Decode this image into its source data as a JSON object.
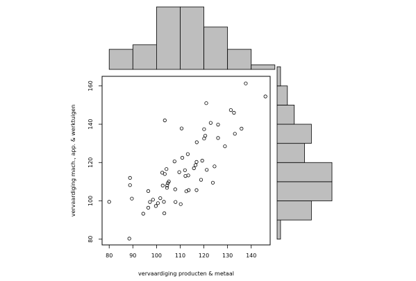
{
  "chart_data": {
    "type": "scatter",
    "title": "",
    "xlabel": "vervaardiging producten & metaal",
    "ylabel": "vervaardiging mach., app. & werktuigen",
    "xlim": [
      77,
      148
    ],
    "ylim": [
      77,
      165
    ],
    "xticks": [
      80,
      90,
      100,
      110,
      120,
      130,
      140
    ],
    "yticks": [
      80,
      100,
      120,
      140,
      160
    ],
    "grid": false,
    "points": [
      {
        "x": 80.0,
        "y": 99.5
      },
      {
        "x": 88.5,
        "y": 80.3
      },
      {
        "x": 88.8,
        "y": 112.0
      },
      {
        "x": 88.8,
        "y": 108.2
      },
      {
        "x": 89.6,
        "y": 101.2
      },
      {
        "x": 94.4,
        "y": 93.3
      },
      {
        "x": 96.5,
        "y": 105.1
      },
      {
        "x": 96.5,
        "y": 96.4
      },
      {
        "x": 97.2,
        "y": 99.4
      },
      {
        "x": 98.5,
        "y": 100.6
      },
      {
        "x": 99.7,
        "y": 97.3
      },
      {
        "x": 100.6,
        "y": 98.8
      },
      {
        "x": 101.6,
        "y": 101.4
      },
      {
        "x": 102.4,
        "y": 114.7
      },
      {
        "x": 102.6,
        "y": 108.0
      },
      {
        "x": 103.1,
        "y": 99.5
      },
      {
        "x": 103.3,
        "y": 93.5
      },
      {
        "x": 103.5,
        "y": 142.0
      },
      {
        "x": 103.5,
        "y": 114.0
      },
      {
        "x": 104.2,
        "y": 116.6
      },
      {
        "x": 104.5,
        "y": 108.0
      },
      {
        "x": 104.4,
        "y": 106.8
      },
      {
        "x": 104.8,
        "y": 109.3
      },
      {
        "x": 105.2,
        "y": 110.1
      },
      {
        "x": 107.6,
        "y": 120.6
      },
      {
        "x": 107.9,
        "y": 106.0
      },
      {
        "x": 108.0,
        "y": 99.4
      },
      {
        "x": 109.6,
        "y": 115.0
      },
      {
        "x": 110.2,
        "y": 98.3
      },
      {
        "x": 110.6,
        "y": 137.8
      },
      {
        "x": 110.9,
        "y": 122.5
      },
      {
        "x": 112.0,
        "y": 116.0
      },
      {
        "x": 112.2,
        "y": 113.0
      },
      {
        "x": 112.6,
        "y": 105.0
      },
      {
        "x": 113.2,
        "y": 124.4
      },
      {
        "x": 113.4,
        "y": 113.3
      },
      {
        "x": 113.6,
        "y": 105.6
      },
      {
        "x": 115.8,
        "y": 117.0
      },
      {
        "x": 116.5,
        "y": 118.7
      },
      {
        "x": 116.9,
        "y": 120.3
      },
      {
        "x": 116.9,
        "y": 105.6
      },
      {
        "x": 117.0,
        "y": 130.6
      },
      {
        "x": 118.8,
        "y": 111.0
      },
      {
        "x": 119.3,
        "y": 121.0
      },
      {
        "x": 120.1,
        "y": 132.5
      },
      {
        "x": 120.1,
        "y": 137.4
      },
      {
        "x": 120.6,
        "y": 134.0
      },
      {
        "x": 121.0,
        "y": 151.0
      },
      {
        "x": 121.2,
        "y": 116.2
      },
      {
        "x": 122.9,
        "y": 140.7
      },
      {
        "x": 123.8,
        "y": 109.5
      },
      {
        "x": 124.5,
        "y": 118.0
      },
      {
        "x": 126.0,
        "y": 139.8
      },
      {
        "x": 126.0,
        "y": 132.8
      },
      {
        "x": 128.9,
        "y": 128.5
      },
      {
        "x": 131.4,
        "y": 147.4
      },
      {
        "x": 132.7,
        "y": 146.0
      },
      {
        "x": 133.1,
        "y": 135.0
      },
      {
        "x": 135.9,
        "y": 137.7
      },
      {
        "x": 137.7,
        "y": 161.3
      },
      {
        "x": 146.0,
        "y": 154.5
      }
    ],
    "x_histogram": {
      "breaks": [
        80,
        90,
        100,
        110,
        120,
        130,
        140,
        150
      ],
      "counts": [
        9,
        11,
        28,
        28,
        19,
        9,
        2
      ]
    },
    "y_histogram": {
      "breaks": [
        80,
        90,
        100,
        110,
        120,
        130,
        140,
        150,
        160,
        170
      ],
      "counts": [
        1,
        10,
        16,
        16,
        8,
        10,
        5,
        3,
        1
      ]
    }
  }
}
